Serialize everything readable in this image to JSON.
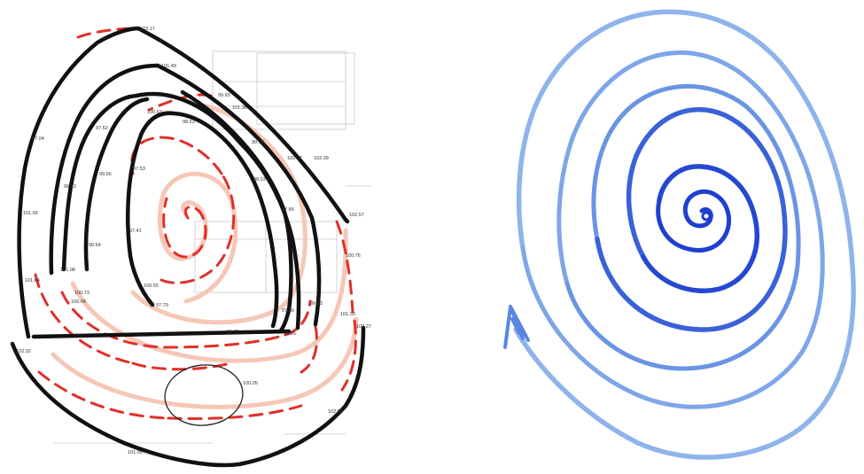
{
  "colors": {
    "background": "#ffffff",
    "black_stroke": "#111111",
    "red_dash": "#e0302a",
    "pink_band": "#f6c7b6",
    "blue_light": "#8fb4ec",
    "blue_mid": "#5a86e0",
    "blue_dark": "#1f3fd0"
  },
  "labels": [
    {
      "id": "l1",
      "text": "103.17"
    },
    {
      "id": "l2",
      "text": "101.49"
    },
    {
      "id": "l3",
      "text": "99.65"
    },
    {
      "id": "l4",
      "text": "101.36"
    },
    {
      "id": "l5",
      "text": "98.53"
    },
    {
      "id": "l6",
      "text": "100.63"
    },
    {
      "id": "l7",
      "text": "99.98"
    },
    {
      "id": "l8",
      "text": "102.67"
    },
    {
      "id": "l9",
      "text": "102.39"
    },
    {
      "id": "l10",
      "text": "98.03"
    },
    {
      "id": "l11",
      "text": "97.86"
    },
    {
      "id": "l12",
      "text": "102.57"
    },
    {
      "id": "l13",
      "text": "100.76"
    },
    {
      "id": "l14",
      "text": "97.04"
    },
    {
      "id": "l15",
      "text": "97.52"
    },
    {
      "id": "l16",
      "text": "99.13"
    },
    {
      "id": "l17",
      "text": "97.53"
    },
    {
      "id": "l18",
      "text": "99.56"
    },
    {
      "id": "l19",
      "text": "101.65"
    },
    {
      "id": "l20",
      "text": "99.64"
    },
    {
      "id": "l21",
      "text": "101.08"
    },
    {
      "id": "l22",
      "text": "97.41"
    },
    {
      "id": "l23",
      "text": "101.64"
    },
    {
      "id": "l24",
      "text": "100.73"
    },
    {
      "id": "l25",
      "text": "100.04"
    },
    {
      "id": "l26",
      "text": "97.79"
    },
    {
      "id": "l27",
      "text": "100.55"
    },
    {
      "id": "l28",
      "text": "97.66"
    },
    {
      "id": "l29",
      "text": "99.23"
    },
    {
      "id": "l30",
      "text": "101.33"
    },
    {
      "id": "l31",
      "text": "102.27"
    },
    {
      "id": "l32",
      "text": "98.95"
    },
    {
      "id": "l33",
      "text": "95.75"
    },
    {
      "id": "l34",
      "text": "102.32"
    },
    {
      "id": "l35",
      "text": "100.05"
    },
    {
      "id": "l36",
      "text": "102.09"
    },
    {
      "id": "l37",
      "text": "101.09"
    }
  ]
}
